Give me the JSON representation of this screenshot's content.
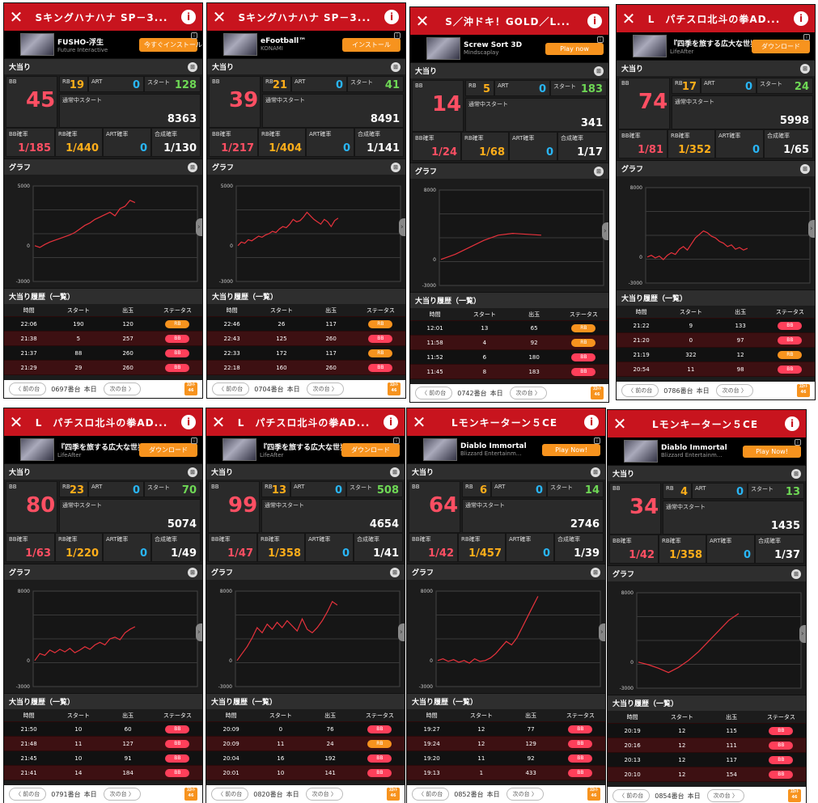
{
  "labels": {
    "bigwin": "大当り",
    "bb": "BB",
    "rb": "RB",
    "art": "ART",
    "start": "スタート",
    "normal_start": "通常中スタート",
    "bb_rate": "BB確率",
    "rb_rate": "RB確率",
    "art_rate": "ART確率",
    "total_rate": "合成確率",
    "graph": "グラフ",
    "history": "大当り履歴（一覧）",
    "col_time": "時間",
    "col_start": "スタート",
    "col_out": "出玉",
    "col_status": "ステータス",
    "prev": "〈 前の台",
    "next": "次の台 〉",
    "today": "本日",
    "logo": "ｽﾛｯﾄ 46"
  },
  "colors": {
    "titlebar": "#c8141e",
    "bb": "#ff4f63",
    "rb": "#ffae1a",
    "art": "#29b6f6",
    "start": "#6ed855",
    "line": "#e8323c"
  },
  "panels": [
    {
      "title": "Sキングハナハナ SP－3...",
      "ad": {
        "name": "FUSHO-浮生",
        "sub": "Future Interactive",
        "btn": "今すぐインストール"
      },
      "bb": "45",
      "rb": "19",
      "art": "0",
      "start": "128",
      "normal_start": "8363",
      "bb_rate": "1/185",
      "rb_rate": "1/440",
      "art_rate": "0",
      "total_rate": "1/130",
      "y_top": "5000",
      "y_zero": "0",
      "y_bottom": "-3000",
      "series": [
        0,
        -150,
        100,
        300,
        450,
        600,
        750,
        900,
        1100,
        1400,
        1700,
        1900,
        2200,
        2400,
        2600,
        2800,
        2500,
        3100,
        3300,
        3800,
        3600
      ],
      "history": [
        [
          "22:06",
          "190",
          "120",
          "RB"
        ],
        [
          "21:38",
          "5",
          "257",
          "BB"
        ],
        [
          "21:37",
          "88",
          "260",
          "BB"
        ],
        [
          "21:29",
          "29",
          "260",
          "BB"
        ]
      ],
      "num": "0697番台"
    },
    {
      "title": "Sキングハナハナ SP－3...",
      "ad": {
        "name": "eFootball™",
        "sub": "KONAMI",
        "btn": "インストール"
      },
      "bb": "39",
      "rb": "21",
      "art": "0",
      "start": "41",
      "normal_start": "8491",
      "bb_rate": "1/217",
      "rb_rate": "1/404",
      "art_rate": "0",
      "total_rate": "1/141",
      "y_top": "5000",
      "y_zero": "0",
      "y_bottom": "-3000",
      "series": [
        0,
        300,
        200,
        500,
        400,
        600,
        800,
        700,
        900,
        1000,
        1200,
        1100,
        1400,
        1600,
        1500,
        1800,
        2200,
        2000,
        2100,
        2400,
        2800,
        2500,
        2200,
        2000,
        1800,
        2200,
        2000,
        1600,
        2100,
        2300
      ],
      "history": [
        [
          "22:46",
          "26",
          "117",
          "RB"
        ],
        [
          "22:43",
          "125",
          "260",
          "BB"
        ],
        [
          "22:33",
          "172",
          "117",
          "RB"
        ],
        [
          "22:18",
          "160",
          "260",
          "BB"
        ]
      ],
      "num": "0704番台"
    },
    {
      "title": "S／沖ドキ！GOLD／L...",
      "ad": {
        "name": "Screw Sort 3D",
        "sub": "Mindscaplay",
        "btn": "Play now"
      },
      "bb": "14",
      "rb": "5",
      "art": "0",
      "start": "183",
      "normal_start": "341",
      "bb_rate": "1/24",
      "rb_rate": "1/68",
      "art_rate": "0",
      "total_rate": "1/17",
      "y_top": "8000",
      "y_zero": "0",
      "y_bottom": "-3000",
      "series": [
        0,
        600,
        1400,
        2200,
        2800,
        3000,
        2900,
        2800
      ],
      "history": [
        [
          "12:01",
          "13",
          "65",
          "RB"
        ],
        [
          "11:58",
          "4",
          "92",
          "RB"
        ],
        [
          "11:52",
          "6",
          "180",
          "BB"
        ],
        [
          "11:45",
          "8",
          "183",
          "BB"
        ]
      ],
      "num": "0742番台"
    },
    {
      "title": "L　パチスロ北斗の拳AD...",
      "ad": {
        "name": "『四季を旅する広大な世界』",
        "sub": "LifeAfter",
        "btn": "ダウンロード"
      },
      "bb": "74",
      "rb": "17",
      "art": "0",
      "start": "24",
      "normal_start": "5998",
      "bb_rate": "1/81",
      "rb_rate": "1/352",
      "art_rate": "0",
      "total_rate": "1/65",
      "y_top": "8000",
      "y_zero": "0",
      "y_bottom": "-3000",
      "series": [
        0,
        200,
        -100,
        100,
        -300,
        200,
        500,
        300,
        900,
        1200,
        800,
        1500,
        2200,
        2600,
        3000,
        2800,
        2400,
        2200,
        1800,
        1600,
        1200,
        1400,
        900,
        1100,
        800,
        1000
      ],
      "history": [
        [
          "21:22",
          "9",
          "133",
          "BB"
        ],
        [
          "21:20",
          "0",
          "97",
          "BB"
        ],
        [
          "21:19",
          "322",
          "12",
          "RB"
        ],
        [
          "20:54",
          "11",
          "98",
          "BB"
        ]
      ],
      "num": "0786番台"
    },
    {
      "title": "L　パチスロ北斗の拳AD...",
      "ad": {
        "name": "『四季を旅する広大な世界』",
        "sub": "LifeAfter",
        "btn": "ダウンロード"
      },
      "bb": "80",
      "rb": "23",
      "art": "0",
      "start": "70",
      "normal_start": "5074",
      "bb_rate": "1/63",
      "rb_rate": "1/220",
      "art_rate": "0",
      "total_rate": "1/49",
      "y_top": "8000",
      "y_zero": "0",
      "y_bottom": "-3000",
      "series": [
        0,
        800,
        600,
        1200,
        900,
        1300,
        1000,
        1400,
        900,
        1200,
        1600,
        1300,
        1800,
        2100,
        1800,
        2500,
        2700,
        2400,
        3200,
        3600,
        3900
      ],
      "history": [
        [
          "21:50",
          "10",
          "60",
          "BB"
        ],
        [
          "21:48",
          "11",
          "127",
          "BB"
        ],
        [
          "21:45",
          "10",
          "91",
          "BB"
        ],
        [
          "21:41",
          "14",
          "184",
          "BB"
        ]
      ],
      "num": "0791番台"
    },
    {
      "title": "L　パチスロ北斗の拳AD...",
      "ad": {
        "name": "『四季を旅する広大な世界』",
        "sub": "LifeAfter",
        "btn": "ダウンロード"
      },
      "bb": "99",
      "rb": "13",
      "art": "0",
      "start": "508",
      "normal_start": "4654",
      "bb_rate": "1/47",
      "rb_rate": "1/358",
      "art_rate": "0",
      "total_rate": "1/41",
      "y_top": "8000",
      "y_zero": "0",
      "y_bottom": "-3000",
      "series": [
        0,
        800,
        1600,
        2600,
        3800,
        3200,
        4200,
        3600,
        4400,
        3800,
        4600,
        4000,
        3400,
        4800,
        3600,
        3200,
        3800,
        4600,
        5600,
        6800,
        6400
      ],
      "history": [
        [
          "20:09",
          "0",
          "76",
          "BB"
        ],
        [
          "20:09",
          "11",
          "24",
          "RB"
        ],
        [
          "20:04",
          "16",
          "192",
          "BB"
        ],
        [
          "20:01",
          "10",
          "141",
          "BB"
        ]
      ],
      "num": "0820番台"
    },
    {
      "title": "Lモンキーターン５CE",
      "ad": {
        "name": "Diablo Immortal",
        "sub": "Blizzard Entertainm...",
        "btn": "Play Now!"
      },
      "bb": "64",
      "rb": "6",
      "art": "0",
      "start": "14",
      "normal_start": "2746",
      "bb_rate": "1/42",
      "rb_rate": "1/457",
      "art_rate": "0",
      "total_rate": "1/39",
      "y_top": "8000",
      "y_zero": "0",
      "y_bottom": "-3000",
      "series": [
        0,
        200,
        -100,
        100,
        -200,
        0,
        -300,
        200,
        -100,
        0,
        300,
        800,
        1500,
        2200,
        1800,
        2600,
        3800,
        5000,
        6200,
        7400
      ],
      "history": [
        [
          "19:27",
          "12",
          "77",
          "BB"
        ],
        [
          "19:24",
          "12",
          "129",
          "BB"
        ],
        [
          "19:20",
          "11",
          "92",
          "BB"
        ],
        [
          "19:13",
          "1",
          "433",
          "BB"
        ]
      ],
      "num": "0852番台"
    },
    {
      "title": "Lモンキーターン５CE",
      "ad": {
        "name": "Diablo Immortal",
        "sub": "Blizzard Entertainm...",
        "btn": "Play Now!"
      },
      "bb": "34",
      "rb": "4",
      "art": "0",
      "start": "13",
      "normal_start": "1435",
      "bb_rate": "1/42",
      "rb_rate": "1/358",
      "art_rate": "0",
      "total_rate": "1/37",
      "y_top": "8000",
      "y_zero": "0",
      "y_bottom": "-3000",
      "series": [
        0,
        -300,
        -700,
        -1200,
        -600,
        200,
        1200,
        2400,
        3600,
        4800,
        5600
      ],
      "history": [
        [
          "20:19",
          "12",
          "115",
          "BB"
        ],
        [
          "20:16",
          "12",
          "111",
          "BB"
        ],
        [
          "20:13",
          "12",
          "117",
          "BB"
        ],
        [
          "20:10",
          "12",
          "154",
          "BB"
        ]
      ],
      "num": "0854番台"
    }
  ]
}
